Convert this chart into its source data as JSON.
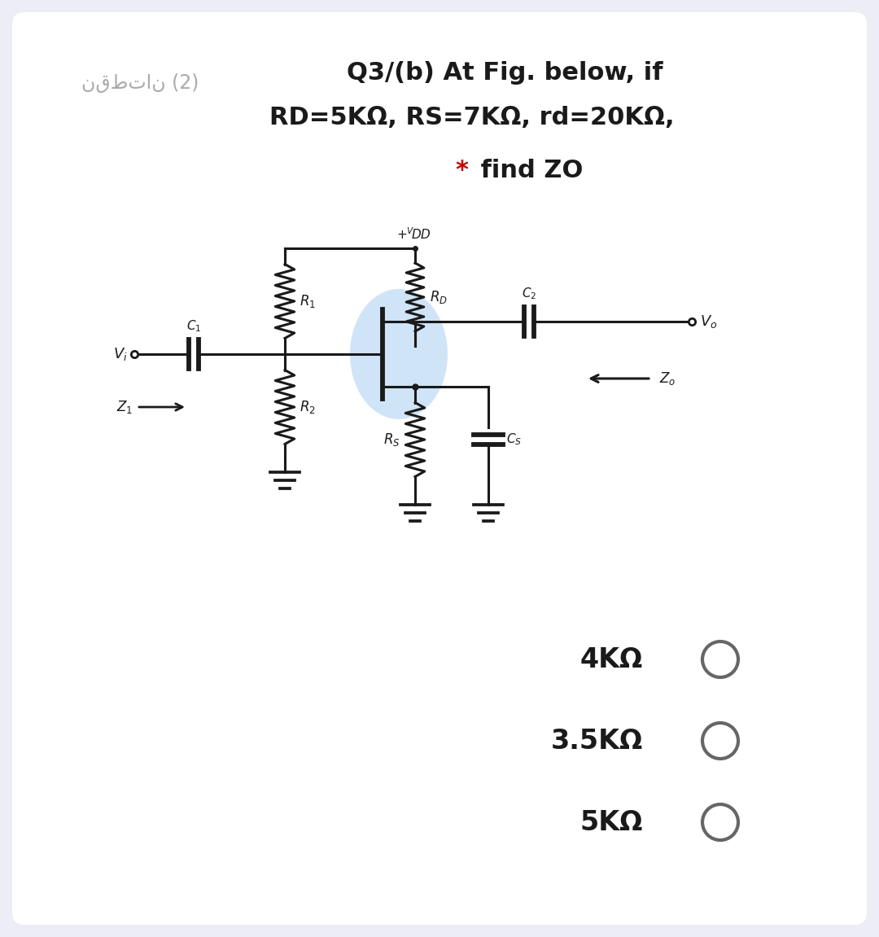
{
  "bg_color": "#ecedf5",
  "card_color": "#ffffff",
  "title_line1": "Q3/(b) At Fig. below, if",
  "title_line2": "RD=5KΩ, RS=7KΩ, rd=20KΩ,",
  "title_line3_star": "*",
  "title_line3_text": " find ZO",
  "arabic_text": "نقطتان (2)",
  "option1": "4KΩ",
  "option2": "3.5KΩ",
  "option3": "5KΩ",
  "text_color": "#1a1a1a",
  "red_color": "#cc0000",
  "circuit_color": "#1a1a1a",
  "mosfet_fill": "#d0e4f8",
  "circle_color": "#666666"
}
